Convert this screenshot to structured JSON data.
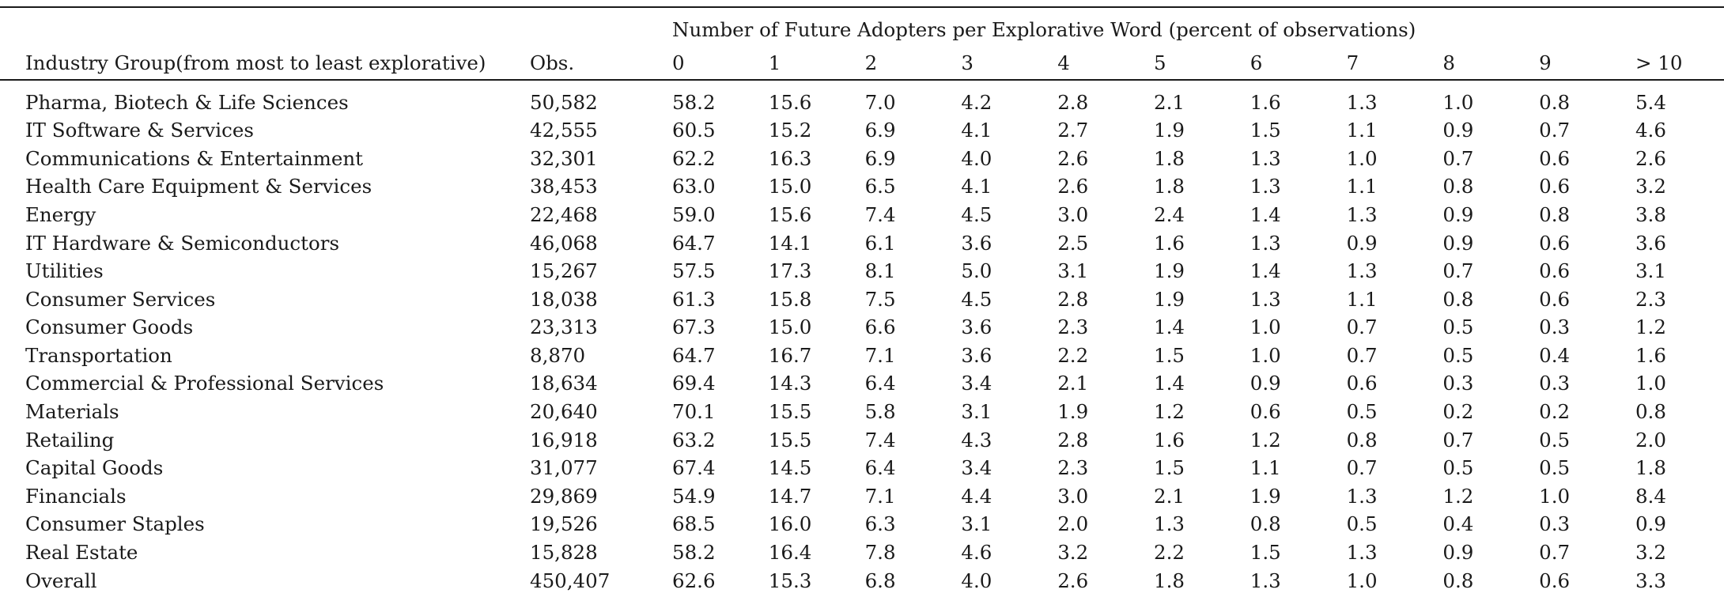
{
  "table": {
    "spanning_header": "Number of Future Adopters per Explorative Word (percent of observations)",
    "columns": [
      "Industry Group(from most to least explorative)",
      "Obs.",
      "0",
      "1",
      "2",
      "3",
      "4",
      "5",
      "6",
      "7",
      "8",
      "9",
      "> 10"
    ],
    "rows": [
      {
        "name": "Pharma, Biotech & Life Sciences",
        "obs": "50,582",
        "values": [
          "58.2",
          "15.6",
          "7.0",
          "4.2",
          "2.8",
          "2.1",
          "1.6",
          "1.3",
          "1.0",
          "0.8",
          "5.4"
        ]
      },
      {
        "name": "IT Software & Services",
        "obs": "42,555",
        "values": [
          "60.5",
          "15.2",
          "6.9",
          "4.1",
          "2.7",
          "1.9",
          "1.5",
          "1.1",
          "0.9",
          "0.7",
          "4.6"
        ]
      },
      {
        "name": "Communications & Entertainment",
        "obs": "32,301",
        "values": [
          "62.2",
          "16.3",
          "6.9",
          "4.0",
          "2.6",
          "1.8",
          "1.3",
          "1.0",
          "0.7",
          "0.6",
          "2.6"
        ]
      },
      {
        "name": "Health Care Equipment & Services",
        "obs": "38,453",
        "values": [
          "63.0",
          "15.0",
          "6.5",
          "4.1",
          "2.6",
          "1.8",
          "1.3",
          "1.1",
          "0.8",
          "0.6",
          "3.2"
        ]
      },
      {
        "name": "Energy",
        "obs": "22,468",
        "values": [
          "59.0",
          "15.6",
          "7.4",
          "4.5",
          "3.0",
          "2.4",
          "1.4",
          "1.3",
          "0.9",
          "0.8",
          "3.8"
        ]
      },
      {
        "name": "IT Hardware & Semiconductors",
        "obs": "46,068",
        "values": [
          "64.7",
          "14.1",
          "6.1",
          "3.6",
          "2.5",
          "1.6",
          "1.3",
          "0.9",
          "0.9",
          "0.6",
          "3.6"
        ]
      },
      {
        "name": "Utilities",
        "obs": "15,267",
        "values": [
          "57.5",
          "17.3",
          "8.1",
          "5.0",
          "3.1",
          "1.9",
          "1.4",
          "1.3",
          "0.7",
          "0.6",
          "3.1"
        ]
      },
      {
        "name": "Consumer Services",
        "obs": "18,038",
        "values": [
          "61.3",
          "15.8",
          "7.5",
          "4.5",
          "2.8",
          "1.9",
          "1.3",
          "1.1",
          "0.8",
          "0.6",
          "2.3"
        ]
      },
      {
        "name": "Consumer Goods",
        "obs": "23,313",
        "values": [
          "67.3",
          "15.0",
          "6.6",
          "3.6",
          "2.3",
          "1.4",
          "1.0",
          "0.7",
          "0.5",
          "0.3",
          "1.2"
        ]
      },
      {
        "name": "Transportation",
        "obs": "8,870",
        "values": [
          "64.7",
          "16.7",
          "7.1",
          "3.6",
          "2.2",
          "1.5",
          "1.0",
          "0.7",
          "0.5",
          "0.4",
          "1.6"
        ]
      },
      {
        "name": "Commercial & Professional Services",
        "obs": "18,634",
        "values": [
          "69.4",
          "14.3",
          "6.4",
          "3.4",
          "2.1",
          "1.4",
          "0.9",
          "0.6",
          "0.3",
          "0.3",
          "1.0"
        ]
      },
      {
        "name": "Materials",
        "obs": "20,640",
        "values": [
          "70.1",
          "15.5",
          "5.8",
          "3.1",
          "1.9",
          "1.2",
          "0.6",
          "0.5",
          "0.2",
          "0.2",
          "0.8"
        ]
      },
      {
        "name": "Retailing",
        "obs": "16,918",
        "values": [
          "63.2",
          "15.5",
          "7.4",
          "4.3",
          "2.8",
          "1.6",
          "1.2",
          "0.8",
          "0.7",
          "0.5",
          "2.0"
        ]
      },
      {
        "name": "Capital Goods",
        "obs": "31,077",
        "values": [
          "67.4",
          "14.5",
          "6.4",
          "3.4",
          "2.3",
          "1.5",
          "1.1",
          "0.7",
          "0.5",
          "0.5",
          "1.8"
        ]
      },
      {
        "name": "Financials",
        "obs": "29,869",
        "values": [
          "54.9",
          "14.7",
          "7.1",
          "4.4",
          "3.0",
          "2.1",
          "1.9",
          "1.3",
          "1.2",
          "1.0",
          "8.4"
        ]
      },
      {
        "name": "Consumer Staples",
        "obs": "19,526",
        "values": [
          "68.5",
          "16.0",
          "6.3",
          "3.1",
          "2.0",
          "1.3",
          "0.8",
          "0.5",
          "0.4",
          "0.3",
          "0.9"
        ]
      },
      {
        "name": "Real Estate",
        "obs": "15,828",
        "values": [
          "58.2",
          "16.4",
          "7.8",
          "4.6",
          "3.2",
          "2.2",
          "1.5",
          "1.3",
          "0.9",
          "0.7",
          "3.2"
        ]
      },
      {
        "name": "Overall",
        "obs": "450,407",
        "values": [
          "62.6",
          "15.3",
          "6.8",
          "4.0",
          "2.6",
          "1.8",
          "1.3",
          "1.0",
          "0.8",
          "0.6",
          "3.3"
        ]
      }
    ]
  }
}
